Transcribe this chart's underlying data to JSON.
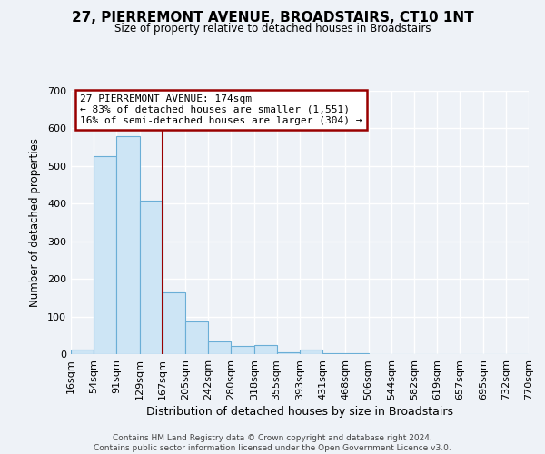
{
  "title": "27, PIERREMONT AVENUE, BROADSTAIRS, CT10 1NT",
  "subtitle": "Size of property relative to detached houses in Broadstairs",
  "xlabel": "Distribution of detached houses by size in Broadstairs",
  "ylabel": "Number of detached properties",
  "footer_lines": [
    "Contains HM Land Registry data © Crown copyright and database right 2024.",
    "Contains public sector information licensed under the Open Government Licence v3.0."
  ],
  "bin_edges": [
    16,
    54,
    91,
    129,
    167,
    205,
    242,
    280,
    318,
    355,
    393,
    431,
    468,
    506,
    544,
    582,
    619,
    657,
    695,
    732,
    770
  ],
  "bin_labels": [
    "16sqm",
    "54sqm",
    "91sqm",
    "129sqm",
    "167sqm",
    "205sqm",
    "242sqm",
    "280sqm",
    "318sqm",
    "355sqm",
    "393sqm",
    "431sqm",
    "468sqm",
    "506sqm",
    "544sqm",
    "582sqm",
    "619sqm",
    "657sqm",
    "695sqm",
    "732sqm",
    "770sqm"
  ],
  "counts": [
    13,
    527,
    580,
    408,
    163,
    87,
    35,
    22,
    24,
    6,
    13,
    2,
    3,
    0,
    0,
    0,
    0,
    0,
    0,
    0
  ],
  "bar_color": "#cde5f5",
  "bar_edge_color": "#6aaed6",
  "vline_x": 167,
  "vline_color": "#990000",
  "annotation_line1": "27 PIERREMONT AVENUE: 174sqm",
  "annotation_line2": "← 83% of detached houses are smaller (1,551)",
  "annotation_line3": "16% of semi-detached houses are larger (304) →",
  "annotation_box_edgecolor": "#990000",
  "annotation_box_facecolor": "#ffffff",
  "ylim": [
    0,
    700
  ],
  "yticks": [
    0,
    100,
    200,
    300,
    400,
    500,
    600,
    700
  ],
  "bg_color": "#eef2f7",
  "plot_bg_color": "#eef2f7",
  "grid_color": "#ffffff",
  "title_fontsize": 11,
  "subtitle_fontsize": 9
}
